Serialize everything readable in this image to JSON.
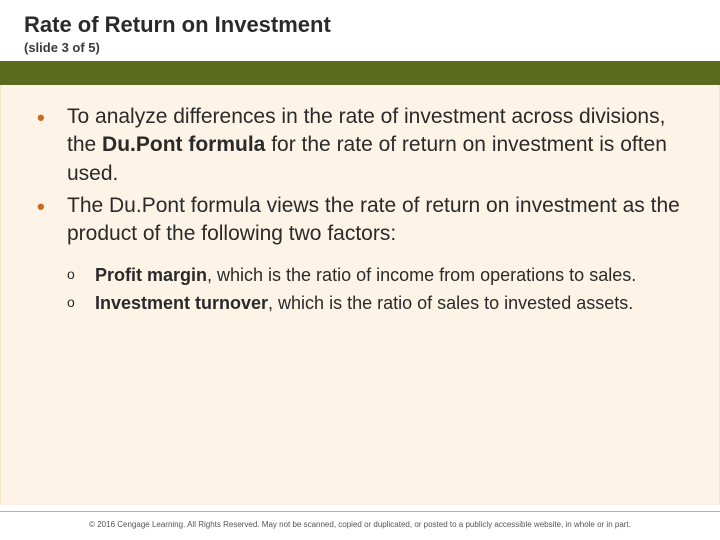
{
  "header": {
    "title": "Rate of Return on Investment",
    "subtitle": "(slide 3 of 5)"
  },
  "colors": {
    "bar": "#5a6b1f",
    "content_bg": "#fdf4e7",
    "bullet": "#c96a1e",
    "footer_border": "#e6a85a"
  },
  "bullets": [
    {
      "pre": "To analyze differences in the rate of investment across divisions, the ",
      "bold": "Du.Pont formula",
      "post": " for the rate of return on investment is often used."
    },
    {
      "pre": "The Du.Pont formula views the rate of return on investment as the product of the following two factors:",
      "bold": "",
      "post": ""
    }
  ],
  "subs": [
    {
      "bold": "Profit margin",
      "rest": ", which is the ratio of income from operations to sales."
    },
    {
      "bold": "Investment turnover",
      "rest": ", which is the ratio of sales to invested assets."
    }
  ],
  "footer": {
    "copyright": "© 2016 Cengage Learning. All Rights Reserved. May not be scanned, copied or duplicated, or posted to a publicly accessible website, in whole or in part."
  }
}
